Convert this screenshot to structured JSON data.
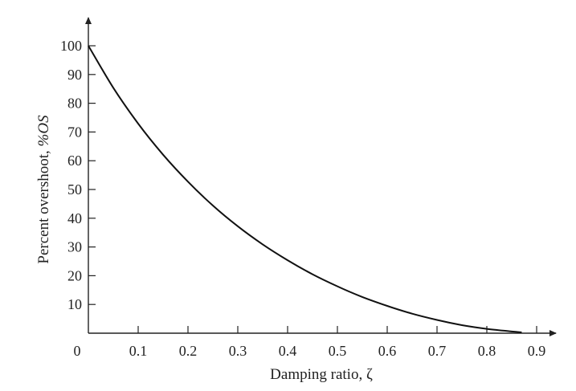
{
  "chart_data": {
    "type": "line",
    "xlabel": "Damping ratio, ζ",
    "ylabel_text": "Percent overshoot, ",
    "ylabel_symbol": "%OS",
    "xlim": [
      0,
      0.9
    ],
    "ylim": [
      0,
      100
    ],
    "origin_label": "0",
    "x_ticks": [
      {
        "value": 0.1,
        "label": "0.1"
      },
      {
        "value": 0.2,
        "label": "0.2"
      },
      {
        "value": 0.3,
        "label": "0.3"
      },
      {
        "value": 0.4,
        "label": "0.4"
      },
      {
        "value": 0.5,
        "label": "0.5"
      },
      {
        "value": 0.6,
        "label": "0.6"
      },
      {
        "value": 0.7,
        "label": "0.7"
      },
      {
        "value": 0.8,
        "label": "0.8"
      },
      {
        "value": 0.9,
        "label": "0.9"
      }
    ],
    "y_ticks": [
      {
        "value": 10,
        "label": "10"
      },
      {
        "value": 20,
        "label": "20"
      },
      {
        "value": 30,
        "label": "30"
      },
      {
        "value": 40,
        "label": "40"
      },
      {
        "value": 50,
        "label": "50"
      },
      {
        "value": 60,
        "label": "60"
      },
      {
        "value": 70,
        "label": "70"
      },
      {
        "value": 80,
        "label": "80"
      },
      {
        "value": 90,
        "label": "90"
      },
      {
        "value": 100,
        "label": "100"
      }
    ],
    "series": [
      {
        "x": [
          0,
          0.05,
          0.1,
          0.15,
          0.2,
          0.25,
          0.3,
          0.35,
          0.4,
          0.45,
          0.5,
          0.55,
          0.6,
          0.65,
          0.7,
          0.75,
          0.8,
          0.85,
          0.87
        ],
        "y": [
          100,
          85.4,
          72.9,
          62.1,
          52.7,
          44.4,
          37.2,
          30.9,
          25.4,
          20.5,
          16.3,
          12.6,
          9.5,
          6.8,
          4.6,
          2.8,
          1.5,
          0.6,
          0.3
        ]
      }
    ]
  },
  "colors": {
    "curve": "#111111",
    "axis": "#222222"
  }
}
